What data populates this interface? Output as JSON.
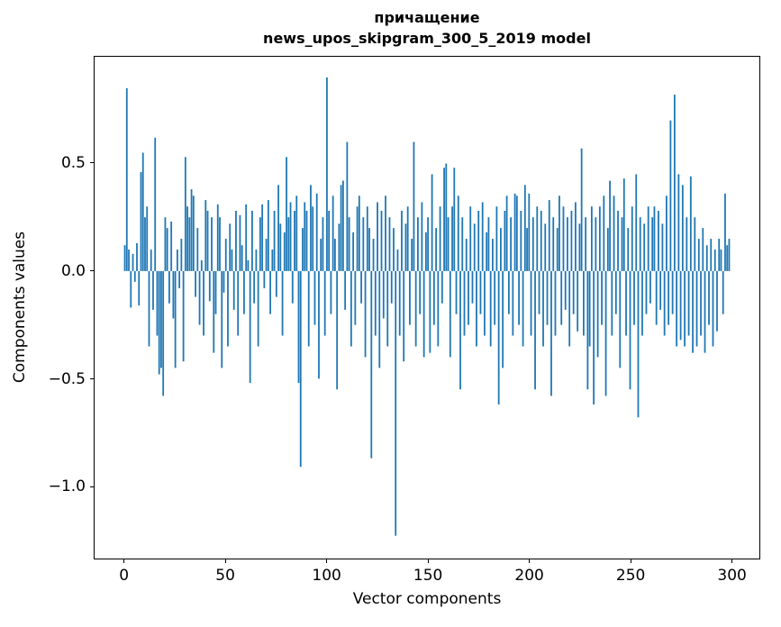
{
  "chart_data": {
    "type": "bar",
    "title": "причащение",
    "subtitle": "news_upos_skipgram_300_5_2019 model",
    "xlabel": "Vector components",
    "ylabel": "Components values",
    "bar_color": "#1f77b4",
    "xlim": [
      -14.95,
      313.95
    ],
    "ylim": [
      -1.336,
      0.996
    ],
    "xticks": [
      0,
      50,
      100,
      150,
      200,
      250,
      300
    ],
    "yticks": [
      -1.0,
      -0.5,
      0.0,
      0.5
    ],
    "x_start": 0,
    "bar_width": 0.8,
    "grid": false,
    "legend": "none",
    "values": [
      0.12,
      0.85,
      0.1,
      -0.17,
      0.08,
      -0.05,
      0.13,
      -0.16,
      0.46,
      0.55,
      0.25,
      0.3,
      -0.35,
      0.1,
      -0.18,
      0.62,
      -0.3,
      -0.48,
      -0.45,
      -0.58,
      0.25,
      0.2,
      -0.15,
      0.23,
      -0.22,
      -0.45,
      0.1,
      -0.08,
      0.15,
      -0.42,
      0.53,
      0.3,
      0.25,
      0.38,
      0.35,
      -0.12,
      0.2,
      -0.25,
      0.05,
      -0.3,
      0.33,
      0.28,
      -0.14,
      0.25,
      -0.38,
      -0.2,
      0.31,
      0.25,
      -0.45,
      -0.1,
      0.15,
      -0.35,
      0.22,
      0.1,
      -0.18,
      0.28,
      -0.3,
      0.26,
      0.12,
      -0.2,
      0.31,
      0.05,
      -0.52,
      0.28,
      -0.15,
      0.1,
      -0.35,
      0.25,
      0.31,
      -0.08,
      0.15,
      0.33,
      -0.2,
      0.1,
      0.28,
      -0.12,
      0.4,
      0.22,
      -0.3,
      0.18,
      0.53,
      0.25,
      0.32,
      -0.15,
      0.28,
      0.35,
      -0.52,
      -0.91,
      0.2,
      0.32,
      0.28,
      -0.35,
      0.4,
      0.3,
      -0.25,
      0.36,
      -0.5,
      0.15,
      0.25,
      -0.3,
      0.9,
      0.28,
      -0.2,
      0.35,
      0.15,
      -0.55,
      0.22,
      0.4,
      0.42,
      -0.18,
      0.6,
      0.25,
      -0.35,
      0.18,
      -0.25,
      0.3,
      0.35,
      -0.15,
      0.25,
      -0.4,
      0.3,
      0.2,
      -0.87,
      0.15,
      -0.3,
      0.32,
      -0.45,
      0.28,
      -0.22,
      0.35,
      -0.35,
      0.25,
      -0.15,
      0.2,
      -1.23,
      0.1,
      -0.3,
      0.28,
      -0.42,
      0.22,
      0.3,
      -0.25,
      0.15,
      0.6,
      -0.35,
      0.25,
      -0.2,
      0.32,
      -0.4,
      0.18,
      0.25,
      -0.38,
      0.45,
      -0.25,
      0.2,
      -0.35,
      0.3,
      -0.15,
      0.48,
      0.5,
      0.25,
      -0.4,
      0.3,
      0.48,
      -0.2,
      0.35,
      -0.55,
      0.25,
      -0.3,
      0.15,
      -0.25,
      0.3,
      -0.15,
      0.22,
      -0.35,
      0.28,
      -0.2,
      0.32,
      -0.3,
      0.18,
      0.25,
      -0.35,
      0.15,
      -0.25,
      0.3,
      -0.62,
      0.2,
      -0.45,
      0.28,
      0.35,
      -0.2,
      0.25,
      -0.3,
      0.36,
      0.35,
      -0.25,
      0.28,
      -0.35,
      0.4,
      0.2,
      0.36,
      -0.3,
      0.25,
      -0.55,
      0.3,
      -0.2,
      0.28,
      -0.35,
      0.22,
      -0.25,
      0.33,
      -0.58,
      0.25,
      -0.3,
      0.2,
      0.35,
      -0.25,
      0.3,
      -0.18,
      0.25,
      -0.35,
      0.28,
      -0.2,
      0.32,
      -0.28,
      0.22,
      0.57,
      -0.3,
      0.25,
      -0.55,
      -0.35,
      0.3,
      -0.62,
      0.25,
      -0.4,
      0.3,
      -0.25,
      0.35,
      -0.58,
      0.2,
      0.42,
      -0.3,
      0.35,
      -0.2,
      0.28,
      -0.45,
      0.25,
      0.43,
      -0.3,
      0.2,
      -0.55,
      0.3,
      -0.25,
      0.45,
      -0.68,
      0.25,
      -0.3,
      0.22,
      -0.2,
      0.3,
      -0.15,
      0.25,
      0.3,
      -0.25,
      0.28,
      -0.18,
      0.22,
      -0.3,
      0.35,
      -0.25,
      0.7,
      -0.2,
      0.82,
      -0.35,
      0.45,
      -0.32,
      0.4,
      -0.35,
      0.25,
      -0.3,
      0.44,
      -0.38,
      0.25,
      -0.35,
      0.15,
      -0.3,
      0.2,
      -0.38,
      0.12,
      -0.25,
      0.15,
      -0.35,
      0.1,
      -0.28,
      0.15,
      0.1,
      -0.2,
      0.36,
      0.12,
      0.15
    ]
  }
}
